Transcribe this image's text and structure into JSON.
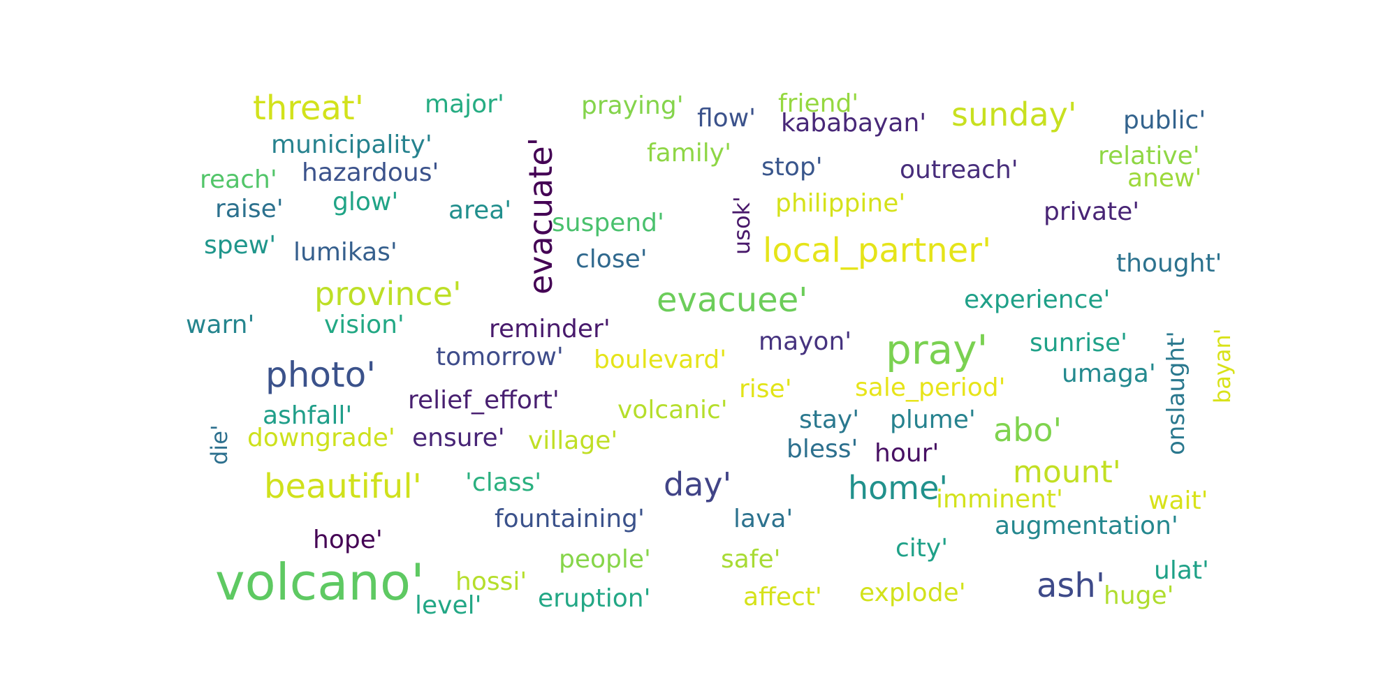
{
  "title": "Word cloud",
  "words": [
    {
      "text": "volcano'",
      "color": "#5ec962"
    },
    {
      "text": "pray'",
      "color": "#7ad151"
    },
    {
      "text": "threat'",
      "color": "#d2e21b"
    },
    {
      "text": "evacuee'",
      "color": "#6ccd5a"
    },
    {
      "text": "local_partner'",
      "color": "#e5e419"
    },
    {
      "text": "province'",
      "color": "#bddf26"
    },
    {
      "text": "photo'",
      "color": "#3b528b"
    },
    {
      "text": "beautiful'",
      "color": "#d0e11c"
    },
    {
      "text": "sunday'",
      "color": "#c8e020"
    },
    {
      "text": "home'",
      "color": "#21918c"
    },
    {
      "text": "day'",
      "color": "#414487"
    },
    {
      "text": "mount'",
      "color": "#c2df23"
    },
    {
      "text": "ash'",
      "color": "#3e4a89"
    },
    {
      "text": "abo'",
      "color": "#7fd34e"
    },
    {
      "text": "evacuate'",
      "color": "#440154"
    },
    {
      "text": "usok'",
      "color": "#48186a"
    },
    {
      "text": "onslaught'",
      "color": "#2a788e"
    },
    {
      "text": "bayan'",
      "color": "#d8e219"
    },
    {
      "text": "die'",
      "color": "#2d708e"
    },
    {
      "text": "major'",
      "color": "#25ac82"
    },
    {
      "text": "praying'",
      "color": "#84d44b"
    },
    {
      "text": "friend'",
      "color": "#95d840"
    },
    {
      "text": "flow'",
      "color": "#3b528b"
    },
    {
      "text": "kababayan'",
      "color": "#482878"
    },
    {
      "text": "public'",
      "color": "#33638d"
    },
    {
      "text": "municipality'",
      "color": "#26828e"
    },
    {
      "text": "family'",
      "color": "#8ed645"
    },
    {
      "text": "stop'",
      "color": "#39568c"
    },
    {
      "text": "outreach'",
      "color": "#472d7b"
    },
    {
      "text": "relative'",
      "color": "#8fd744"
    },
    {
      "text": "anew'",
      "color": "#9dd93b"
    },
    {
      "text": "reach'",
      "color": "#52c569"
    },
    {
      "text": "hazardous'",
      "color": "#3b528b"
    },
    {
      "text": "raise'",
      "color": "#2c718e"
    },
    {
      "text": "glow'",
      "color": "#20a486"
    },
    {
      "text": "area'",
      "color": "#218f8d"
    },
    {
      "text": "suspend'",
      "color": "#4ac16d"
    },
    {
      "text": "philippine'",
      "color": "#d5e21a"
    },
    {
      "text": "private'",
      "color": "#482475"
    },
    {
      "text": "spew'",
      "color": "#1f968b"
    },
    {
      "text": "lumikas'",
      "color": "#355f8d"
    },
    {
      "text": "close'",
      "color": "#30698e"
    },
    {
      "text": "thought'",
      "color": "#2c728e"
    },
    {
      "text": "experience'",
      "color": "#1fa088"
    },
    {
      "text": "warn'",
      "color": "#25858e"
    },
    {
      "text": "vision'",
      "color": "#22a884"
    },
    {
      "text": "reminder'",
      "color": "#481a6c"
    },
    {
      "text": "mayon'",
      "color": "#46337f"
    },
    {
      "text": "sunrise'",
      "color": "#1fa188"
    },
    {
      "text": "umaga'",
      "color": "#23898e"
    },
    {
      "text": "tomorrow'",
      "color": "#3e4c8a"
    },
    {
      "text": "boulevard'",
      "color": "#e5e419"
    },
    {
      "text": "rise'",
      "color": "#e2e418"
    },
    {
      "text": "sale_period'",
      "color": "#e7e419"
    },
    {
      "text": "relief_effort'",
      "color": "#481f70"
    },
    {
      "text": "ashfall'",
      "color": "#1f9e89"
    },
    {
      "text": "volcanic'",
      "color": "#b5de2b"
    },
    {
      "text": "stay'",
      "color": "#2a788e"
    },
    {
      "text": "plume'",
      "color": "#26828e"
    },
    {
      "text": "downgrade'",
      "color": "#cde11d"
    },
    {
      "text": "ensure'",
      "color": "#482576"
    },
    {
      "text": "village'",
      "color": "#c0df25"
    },
    {
      "text": "bless'",
      "color": "#2d708e"
    },
    {
      "text": "hour'",
      "color": "#471063"
    },
    {
      "text": "'class'",
      "color": "#2ab07f"
    },
    {
      "text": "imminent'",
      "color": "#d2e21b"
    },
    {
      "text": "wait'",
      "color": "#d8e219"
    },
    {
      "text": "fountaining'",
      "color": "#3b528b"
    },
    {
      "text": "lava'",
      "color": "#2c728e"
    },
    {
      "text": "augmentation'",
      "color": "#24878e"
    },
    {
      "text": "hope'",
      "color": "#440154"
    },
    {
      "text": "people'",
      "color": "#86d549"
    },
    {
      "text": "safe'",
      "color": "#a8db34"
    },
    {
      "text": "city'",
      "color": "#1fa188"
    },
    {
      "text": "hossi'",
      "color": "#b5de2b"
    },
    {
      "text": "ulat'",
      "color": "#1fa187"
    },
    {
      "text": "level'",
      "color": "#22a785"
    },
    {
      "text": "eruption'",
      "color": "#22a785"
    },
    {
      "text": "affect'",
      "color": "#d5e21a"
    },
    {
      "text": "explode'",
      "color": "#d2e21b"
    },
    {
      "text": "huge'",
      "color": "#b0dd2f"
    }
  ]
}
